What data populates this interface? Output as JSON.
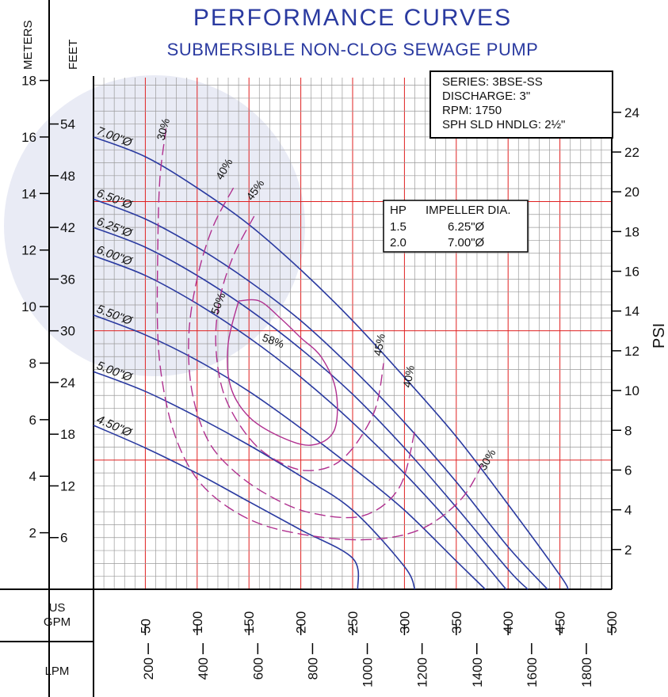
{
  "header": {
    "title": "PERFORMANCE  CURVES",
    "subtitle": "SUBMERSIBLE NON-CLOG SEWAGE PUMP"
  },
  "info_box": {
    "series": "SERIES: 3BSE-SS",
    "discharge": "DISCHARGE: 3\"",
    "rpm": "RPM: 1750",
    "solids": "SPH SLD HNDLG: 2½\""
  },
  "hp_table": {
    "header_hp": "HP",
    "header_dia": "IMPELLER DIA.",
    "rows": [
      {
        "hp": "1.5",
        "dia": "6.25\"Ø"
      },
      {
        "hp": "2.0",
        "dia": "7.00\"Ø"
      }
    ]
  },
  "axes": {
    "meters_label": "METERS",
    "feet_label": "FEET",
    "psi_label": "PSI",
    "gpm_label_1": "US",
    "gpm_label_2": "GPM",
    "lpm_label": "LPM",
    "meters_ticks": [
      "2",
      "4",
      "6",
      "8",
      "10",
      "12",
      "14",
      "16",
      "18"
    ],
    "feet_ticks": [
      "6",
      "12",
      "18",
      "24",
      "30",
      "36",
      "42",
      "48",
      "54"
    ],
    "psi_ticks": [
      "2",
      "4",
      "6",
      "8",
      "10",
      "12",
      "14",
      "16",
      "18",
      "20",
      "22",
      "24"
    ],
    "gpm_ticks": [
      "50",
      "100",
      "150",
      "200",
      "250",
      "300",
      "350",
      "400",
      "450",
      "500"
    ],
    "lpm_ticks": [
      "200",
      "400",
      "600",
      "800",
      "1000",
      "1200",
      "1400",
      "1600",
      "1800"
    ]
  },
  "colors": {
    "curve": "#2a3aa0",
    "efficiency": "#b0308f",
    "grid_minor": "#9a9a9a",
    "grid_major": "#e02020",
    "axis": "#000000"
  },
  "chart_data": {
    "type": "line",
    "title": "PERFORMANCE  CURVES",
    "subtitle": "SUBMERSIBLE NON-CLOG SEWAGE PUMP",
    "xlabel": "US GPM",
    "ylabel": "METERS",
    "secondary_axes": [
      "FEET",
      "PSI",
      "LPM"
    ],
    "xlim": [
      0,
      500
    ],
    "ylim": [
      0,
      18.2
    ],
    "grid": true,
    "series": [
      {
        "name": "7.00\"Ø",
        "x": [
          0,
          50,
          100,
          150,
          200,
          250,
          300,
          350,
          400,
          450,
          458
        ],
        "y": [
          16.0,
          15.3,
          14.2,
          12.9,
          11.3,
          9.5,
          7.5,
          5.4,
          3.0,
          0.5,
          0.0
        ]
      },
      {
        "name": "6.50\"Ø",
        "x": [
          0,
          50,
          100,
          150,
          200,
          250,
          300,
          350,
          400,
          438
        ],
        "y": [
          13.8,
          13.1,
          12.1,
          10.9,
          9.5,
          7.8,
          5.9,
          3.8,
          1.5,
          0.0
        ]
      },
      {
        "name": "6.25\"Ø",
        "x": [
          0,
          50,
          100,
          150,
          200,
          250,
          300,
          350,
          400,
          419
        ],
        "y": [
          12.8,
          12.1,
          11.1,
          9.9,
          8.5,
          6.9,
          5.0,
          2.9,
          0.7,
          0.0
        ]
      },
      {
        "name": "6.00\"Ø",
        "x": [
          0,
          50,
          100,
          150,
          200,
          250,
          300,
          350,
          398
        ],
        "y": [
          11.8,
          11.1,
          10.1,
          8.9,
          7.5,
          5.9,
          4.1,
          2.1,
          0.0
        ]
      },
      {
        "name": "5.50\"Ø",
        "x": [
          0,
          50,
          100,
          150,
          200,
          250,
          300,
          350,
          378
        ],
        "y": [
          9.7,
          9.0,
          8.1,
          7.0,
          5.7,
          4.3,
          2.8,
          1.0,
          0.0
        ]
      },
      {
        "name": "5.00\"Ø",
        "x": [
          0,
          50,
          100,
          150,
          200,
          250,
          300,
          310
        ],
        "y": [
          7.7,
          7.0,
          6.1,
          5.1,
          4.0,
          2.8,
          0.8,
          0.0
        ]
      },
      {
        "name": "4.50\"Ø",
        "x": [
          0,
          50,
          100,
          150,
          200,
          250,
          255
        ],
        "y": [
          5.8,
          5.0,
          4.1,
          3.1,
          2.1,
          1.1,
          0.0
        ]
      }
    ],
    "efficiency_series": [
      {
        "name": "30%",
        "x": [
          70,
          64,
          62,
          62,
          68,
          80,
          100,
          130,
          170,
          230,
          280,
          320,
          355,
          375
        ],
        "y": [
          16.3,
          14.5,
          12.0,
          9.0,
          7.0,
          5.3,
          3.9,
          2.9,
          2.2,
          1.8,
          1.8,
          2.2,
          3.2,
          4.4
        ]
      },
      {
        "name": "40%",
        "x": [
          135,
          115,
          100,
          92,
          95,
          110,
          135,
          170,
          210,
          260,
          295,
          310
        ],
        "y": [
          14.2,
          12.8,
          11.0,
          9.0,
          7.0,
          5.3,
          4.2,
          3.3,
          2.7,
          2.6,
          3.6,
          5.6
        ]
      },
      {
        "name": "45%",
        "x": [
          155,
          135,
          122,
          118,
          125,
          145,
          170,
          205,
          240,
          270,
          280
        ],
        "y": [
          13.2,
          11.8,
          10.3,
          8.7,
          7.0,
          5.6,
          4.7,
          4.2,
          4.6,
          6.2,
          8.0
        ]
      },
      {
        "name": "50%",
        "x": [
          140,
          130,
          132,
          150,
          180,
          210,
          232,
          234,
          220,
          200,
          180,
          160,
          140
        ],
        "y": [
          10.2,
          8.7,
          7.2,
          6.1,
          5.4,
          5.1,
          5.6,
          7.0,
          8.2,
          8.9,
          9.6,
          10.2,
          10.2
        ]
      },
      {
        "name": "58%",
        "x": [],
        "y": []
      }
    ],
    "impeller_table": [
      {
        "hp": "1.5",
        "impeller_dia": "6.25\"Ø"
      },
      {
        "hp": "2.0",
        "impeller_dia": "7.00\"Ø"
      }
    ],
    "curve_labels": [
      "7.00\"Ø",
      "6.50\"Ø",
      "6.25\"Ø",
      "6.00\"Ø",
      "5.50\"Ø",
      "5.00\"Ø",
      "4.50\"Ø"
    ],
    "efficiency_labels": [
      "30%",
      "40%",
      "45%",
      "50%",
      "58%",
      "45%",
      "40%",
      "30%"
    ]
  }
}
